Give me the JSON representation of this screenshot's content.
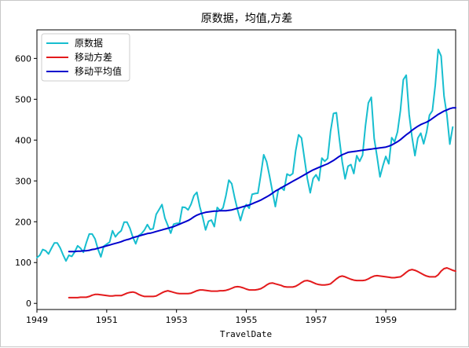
{
  "chart_data": {
    "type": "line",
    "title": "原数据，均值,方差",
    "xlabel": "TravelDate",
    "ylabel": "",
    "xlim": [
      1949.0,
      1961.0
    ],
    "ylim": [
      -15,
      670
    ],
    "x_ticks": [
      1949,
      1951,
      1953,
      1955,
      1957,
      1959
    ],
    "y_ticks": [
      0,
      100,
      200,
      300,
      400,
      500,
      600
    ],
    "grid": false,
    "legend_position": "top-left",
    "series": [
      {
        "name": "原数据",
        "color": "#17becf",
        "start": 1949.0,
        "step": 0.08333,
        "values": [
          112,
          118,
          132,
          129,
          121,
          135,
          148,
          148,
          136,
          119,
          104,
          118,
          115,
          126,
          141,
          135,
          125,
          149,
          170,
          170,
          158,
          133,
          114,
          140,
          145,
          150,
          178,
          163,
          172,
          178,
          199,
          199,
          184,
          162,
          146,
          166,
          171,
          180,
          193,
          181,
          183,
          218,
          230,
          242,
          209,
          191,
          172,
          194,
          196,
          196,
          236,
          235,
          229,
          243,
          264,
          272,
          237,
          211,
          180,
          201,
          204,
          188,
          235,
          227,
          234,
          264,
          302,
          293,
          259,
          229,
          203,
          229,
          242,
          233,
          267,
          269,
          270,
          315,
          364,
          347,
          312,
          274,
          237,
          278,
          284,
          277,
          317,
          313,
          318,
          374,
          413,
          405,
          355,
          306,
          271,
          306,
          315,
          301,
          356,
          348,
          355,
          422,
          465,
          467,
          404,
          347,
          305,
          336,
          340,
          318,
          362,
          348,
          363,
          435,
          491,
          505,
          404,
          359,
          310,
          337,
          360,
          342,
          406,
          396,
          420,
          472,
          548,
          559,
          463,
          407,
          362,
          405,
          417,
          391,
          419,
          461,
          472,
          535,
          622,
          606,
          508,
          461,
          390,
          432
        ]
      },
      {
        "name": "移动方差",
        "color": "#e31a1c",
        "start": 1949.9167,
        "step": 0.08333,
        "values": [
          14,
          14,
          14,
          14,
          15,
          15,
          15,
          17,
          20,
          22,
          22,
          21,
          20,
          19,
          18,
          18,
          19,
          19,
          19,
          22,
          25,
          27,
          28,
          26,
          22,
          19,
          17,
          17,
          17,
          17,
          18,
          22,
          26,
          29,
          31,
          29,
          27,
          25,
          24,
          24,
          24,
          24,
          25,
          28,
          31,
          33,
          33,
          32,
          31,
          30,
          30,
          30,
          31,
          31,
          32,
          34,
          37,
          40,
          41,
          40,
          38,
          35,
          33,
          33,
          33,
          34,
          36,
          40,
          45,
          49,
          50,
          48,
          46,
          44,
          41,
          40,
          40,
          40,
          42,
          46,
          51,
          55,
          56,
          54,
          51,
          48,
          46,
          45,
          45,
          46,
          48,
          54,
          60,
          65,
          67,
          65,
          62,
          59,
          57,
          56,
          56,
          56,
          57,
          60,
          64,
          67,
          68,
          67,
          66,
          65,
          64,
          63,
          63,
          64,
          65,
          70,
          76,
          81,
          83,
          81,
          78,
          74,
          70,
          67,
          65,
          65,
          65,
          70,
          79,
          85,
          87,
          84,
          81,
          79
        ]
      },
      {
        "name": "移动平均值",
        "color": "#0000cd",
        "start": 1949.9167,
        "step": 0.08333,
        "values": [
          127,
          127,
          127,
          128,
          128,
          129,
          129,
          130,
          132,
          133,
          135,
          137,
          139,
          141,
          143,
          145,
          147,
          149,
          151,
          154,
          156,
          158,
          161,
          163,
          165,
          167,
          169,
          171,
          172,
          174,
          176,
          178,
          180,
          182,
          184,
          186,
          188,
          191,
          194,
          197,
          200,
          203,
          207,
          212,
          216,
          219,
          221,
          223,
          224,
          225,
          226,
          226,
          227,
          227,
          227,
          228,
          229,
          231,
          233,
          235,
          237,
          239,
          241,
          244,
          247,
          250,
          253,
          257,
          261,
          265,
          270,
          275,
          279,
          283,
          287,
          291,
          295,
          299,
          303,
          307,
          311,
          315,
          319,
          323,
          327,
          330,
          333,
          336,
          339,
          342,
          346,
          350,
          355,
          360,
          364,
          367,
          370,
          371,
          372,
          373,
          374,
          375,
          376,
          377,
          378,
          379,
          380,
          381,
          382,
          383,
          385,
          388,
          392,
          396,
          401,
          407,
          413,
          418,
          424,
          429,
          434,
          438,
          441,
          444,
          448,
          453,
          458,
          463,
          467,
          471,
          474,
          477,
          479,
          479
        ]
      }
    ]
  }
}
